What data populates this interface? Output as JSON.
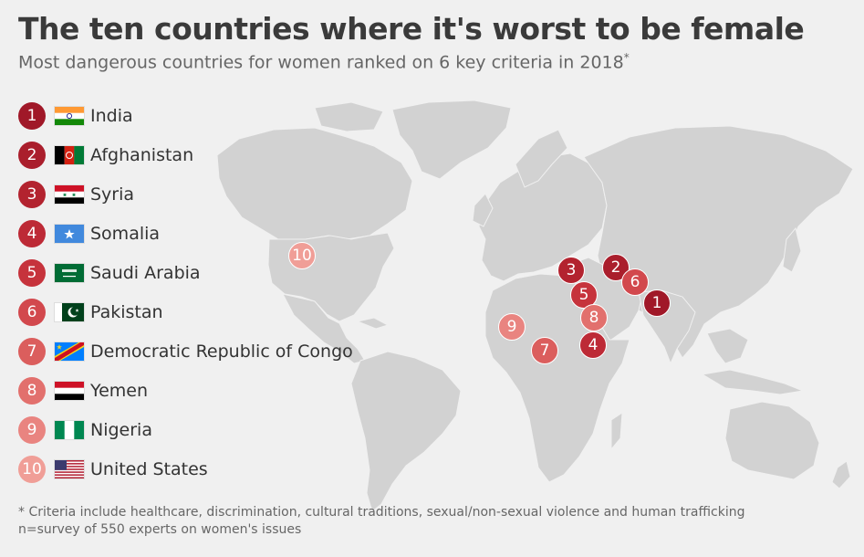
{
  "title": "The ten countries where it's worst to be female",
  "subtitle": "Most dangerous countries for women ranked on 6 key criteria in 2018",
  "subtitle_mark": "*",
  "rank_colors": {
    "1": "#a01828",
    "2": "#aa1e2c",
    "3": "#b3232f",
    "4": "#bd2a36",
    "5": "#c6333c",
    "6": "#d2484d",
    "7": "#db5e5d",
    "8": "#e2706d",
    "9": "#e98480",
    "10": "#f09e97"
  },
  "map_color": "#d2d2d2",
  "countries": [
    {
      "rank": "1",
      "name": "India",
      "flag": "flag-india-icon"
    },
    {
      "rank": "2",
      "name": "Afghanistan",
      "flag": "flag-afghanistan-icon"
    },
    {
      "rank": "3",
      "name": "Syria",
      "flag": "flag-syria-icon"
    },
    {
      "rank": "4",
      "name": "Somalia",
      "flag": "flag-somalia-icon"
    },
    {
      "rank": "5",
      "name": "Saudi Arabia",
      "flag": "flag-saudi-arabia-icon"
    },
    {
      "rank": "6",
      "name": "Pakistan",
      "flag": "flag-pakistan-icon"
    },
    {
      "rank": "7",
      "name": "Democratic Republic of Congo",
      "flag": "flag-drc-icon"
    },
    {
      "rank": "8",
      "name": "Yemen",
      "flag": "flag-yemen-icon"
    },
    {
      "rank": "9",
      "name": "Nigeria",
      "flag": "flag-nigeria-icon"
    },
    {
      "rank": "10",
      "name": "United States",
      "flag": "flag-usa-icon"
    }
  ],
  "footnote": {
    "line1": "* Criteria include healthcare, discrimination, cultural traditions, sexual/non-sexual violence and human trafficking",
    "line2": "n=survey of 550 experts on women's issues"
  }
}
